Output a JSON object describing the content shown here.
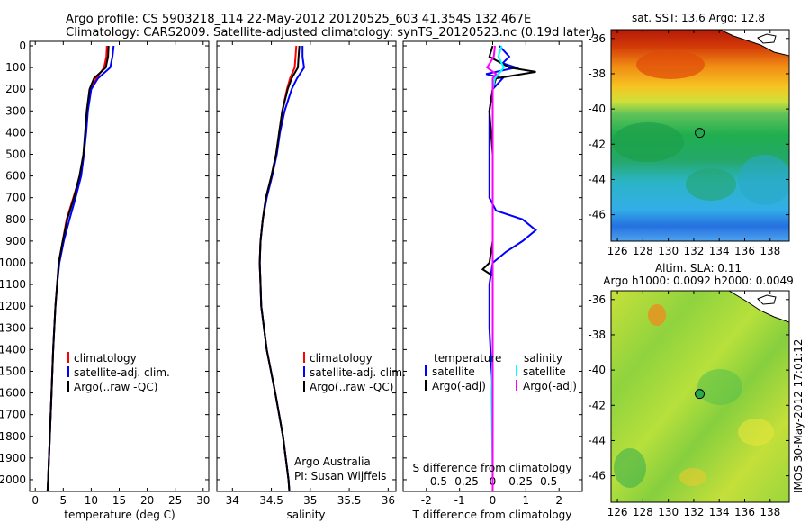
{
  "header": {
    "line1": "Argo profile: CS 5903218_114 22-May-2012 20120525_603 41.354S 132.467E",
    "line2": "Climatology: CARS2009. Satellite-adjusted climatology: synTS_20120523.nc (0.19d later)"
  },
  "colors": {
    "climatology": "#ff0000",
    "satellite": "#0000ff",
    "argo": "#000000",
    "sat_salinity": "#00ffff",
    "argo_salinity": "#ff00ff"
  },
  "depth_ticks": [
    "0",
    "100",
    "200",
    "300",
    "400",
    "500",
    "600",
    "700",
    "800",
    "900",
    "1000",
    "1100",
    "1200",
    "1300",
    "1400",
    "1500",
    "1600",
    "1700",
    "1800",
    "1900",
    "2000"
  ],
  "panels": {
    "temperature": {
      "xlabel": "temperature (deg C)",
      "xticks": [
        "0",
        "5",
        "10",
        "15",
        "20",
        "25",
        "30"
      ],
      "legend": [
        "climatology",
        "satellite-adj. clim.",
        "Argo(..raw -QC)"
      ]
    },
    "salinity": {
      "xlabel": "salinity",
      "xticks": [
        "34",
        "34.5",
        "35",
        "35.5",
        "36"
      ],
      "legend": [
        "climatology",
        "satellite-adj. clim.",
        "Argo(..raw -QC)"
      ],
      "note1": "Argo Australia",
      "note2": "PI: Susan Wijffels"
    },
    "difference": {
      "top_axis_title": "S difference from climatology",
      "s_ticks": [
        "-0.5",
        "-0.25",
        "0",
        "0.25",
        "0.5"
      ],
      "t_ticks": [
        "-2",
        "-1",
        "0",
        "1",
        "2"
      ],
      "xlabel": "T difference from climatology",
      "legend_temp_head": "temperature",
      "legend_sal_head": "salinity",
      "legend_temp": [
        "satellite",
        "Argo(-adj)"
      ],
      "legend_sal": [
        "satellite",
        "Argo(-adj)"
      ]
    },
    "map_sst": {
      "title": "sat. SST: 13.6 Argo: 12.8",
      "lat_ticks": [
        "-36",
        "-38",
        "-40",
        "-42",
        "-44",
        "-46"
      ],
      "lon_ticks": [
        "126",
        "128",
        "130",
        "132",
        "134",
        "136",
        "138"
      ]
    },
    "map_sla": {
      "title1": "Altim. SLA: 0.11",
      "title2": "Argo h1000: 0.0092 h2000: 0.0049",
      "lat_ticks": [
        "-36",
        "-38",
        "-40",
        "-42",
        "-44",
        "-46"
      ],
      "lon_ticks": [
        "126",
        "128",
        "130",
        "132",
        "134",
        "136",
        "138"
      ]
    }
  },
  "stamp": "IMOS 30-May-2012 17:01:12",
  "chart_data": [
    {
      "type": "line",
      "xlabel": "temperature (deg C)",
      "ylabel": "",
      "xlim": [
        -1,
        31
      ],
      "ylim": [
        2050,
        0
      ],
      "series": [
        {
          "name": "climatology",
          "color": "#ff0000",
          "depth": [
            0,
            50,
            100,
            150,
            200,
            300,
            400,
            500,
            600,
            700,
            800,
            900,
            1000,
            1100,
            1200,
            1400,
            1600,
            1800,
            2000,
            2050
          ],
          "values": [
            12.8,
            12.7,
            12.3,
            10.9,
            9.9,
            9.3,
            9.0,
            8.6,
            8.0,
            6.8,
            5.6,
            4.9,
            4.2,
            3.9,
            3.6,
            3.2,
            2.9,
            2.6,
            2.3,
            2.2
          ]
        },
        {
          "name": "satellite-adj. clim.",
          "color": "#0000ff",
          "depth": [
            0,
            50,
            100,
            150,
            200,
            300,
            400,
            500,
            600,
            700,
            800,
            900,
            1000,
            1100,
            1200,
            1400,
            1600,
            1800,
            2000,
            2050
          ],
          "values": [
            14.0,
            13.8,
            13.4,
            11.2,
            10.0,
            9.4,
            9.1,
            8.7,
            8.2,
            7.2,
            6.1,
            5.1,
            4.3,
            3.9,
            3.6,
            3.2,
            2.9,
            2.6,
            2.3,
            2.2
          ]
        },
        {
          "name": "Argo(..raw -QC)",
          "color": "#000000",
          "depth": [
            0,
            50,
            100,
            150,
            200,
            300,
            400,
            500,
            600,
            700,
            800,
            900,
            1000,
            1100,
            1200,
            1400,
            1600,
            1800,
            2000,
            2050
          ],
          "values": [
            13.1,
            13.0,
            12.6,
            10.5,
            9.7,
            9.2,
            8.9,
            8.6,
            7.9,
            6.9,
            5.7,
            4.9,
            4.2,
            3.9,
            3.6,
            3.2,
            2.9,
            2.6,
            2.3,
            2.2
          ]
        }
      ]
    },
    {
      "type": "line",
      "xlabel": "salinity",
      "ylabel": "",
      "xlim": [
        33.8,
        36.1
      ],
      "ylim": [
        2050,
        0
      ],
      "series": [
        {
          "name": "climatology",
          "color": "#ff0000",
          "depth": [
            0,
            50,
            100,
            150,
            200,
            300,
            400,
            500,
            600,
            700,
            800,
            900,
            1000,
            1100,
            1200,
            1400,
            1600,
            1800,
            2000,
            2050
          ],
          "values": [
            34.82,
            34.81,
            34.8,
            34.74,
            34.7,
            34.64,
            34.6,
            34.56,
            34.5,
            34.43,
            34.39,
            34.36,
            34.35,
            34.36,
            34.37,
            34.44,
            34.55,
            34.65,
            34.72,
            34.73
          ]
        },
        {
          "name": "satellite-adj. clim.",
          "color": "#0000ff",
          "depth": [
            0,
            50,
            100,
            150,
            200,
            300,
            400,
            500,
            600,
            700,
            800,
            900,
            1000,
            1100,
            1200,
            1400,
            1600,
            1800,
            2000,
            2050
          ],
          "values": [
            34.9,
            34.9,
            34.92,
            34.83,
            34.76,
            34.67,
            34.61,
            34.57,
            34.51,
            34.44,
            34.39,
            34.36,
            34.35,
            34.36,
            34.37,
            34.44,
            34.55,
            34.65,
            34.72,
            34.73
          ]
        },
        {
          "name": "Argo(..raw -QC)",
          "color": "#000000",
          "depth": [
            0,
            50,
            100,
            150,
            200,
            300,
            400,
            500,
            600,
            700,
            800,
            900,
            1000,
            1100,
            1200,
            1400,
            1600,
            1800,
            2000,
            2050
          ],
          "values": [
            34.86,
            34.85,
            34.84,
            34.76,
            34.71,
            34.64,
            34.6,
            34.56,
            34.5,
            34.43,
            34.39,
            34.36,
            34.35,
            34.36,
            34.37,
            34.44,
            34.55,
            34.65,
            34.72,
            34.73
          ]
        }
      ]
    },
    {
      "type": "line",
      "xlabel": "T difference from climatology",
      "ylabel": "",
      "xlim": [
        -2.7,
        2.7
      ],
      "ylim": [
        2050,
        0
      ],
      "series": [
        {
          "name": "temperature satellite",
          "color": "#0000ff",
          "depth": [
            0,
            50,
            80,
            100,
            130,
            150,
            200,
            300,
            500,
            700,
            760,
            800,
            850,
            900,
            950,
            1000,
            1100,
            1300,
            1600,
            2000,
            2050
          ],
          "values": [
            0.2,
            0.5,
            0.3,
            0.7,
            -0.2,
            0.3,
            0.0,
            -0.1,
            -0.1,
            -0.1,
            0.1,
            0.9,
            1.3,
            0.9,
            0.4,
            0.0,
            -0.1,
            -0.1,
            0.0,
            0.0,
            0.0
          ]
        },
        {
          "name": "temperature Argo(-adj)",
          "color": "#000000",
          "depth": [
            0,
            50,
            100,
            120,
            150,
            200,
            300,
            500,
            700,
            800,
            900,
            1000,
            1030,
            1060,
            1100,
            1300,
            1600,
            2000,
            2050
          ],
          "values": [
            0.0,
            -0.1,
            0.5,
            1.3,
            0.1,
            0.0,
            -0.1,
            0.0,
            0.0,
            0.0,
            0.0,
            -0.1,
            -0.3,
            0.0,
            0.0,
            0.0,
            0.0,
            0.0,
            0.0
          ]
        },
        {
          "name": "salinity satellite",
          "color": "#00ffff",
          "depth": [
            0,
            50,
            100,
            150,
            200,
            300,
            500,
            800,
            1100,
            1400,
            1600,
            2000,
            2050
          ],
          "values": [
            0.08,
            0.05,
            0.1,
            0.02,
            0.0,
            0.0,
            0.0,
            0.0,
            0.0,
            0.0,
            -0.01,
            0.0,
            0.0
          ]
        },
        {
          "name": "salinity Argo(-adj)",
          "color": "#ff00ff",
          "depth": [
            0,
            50,
            100,
            130,
            150,
            200,
            300,
            500,
            800,
            1100,
            1400,
            1600,
            2000,
            2050
          ],
          "values": [
            0.02,
            0.01,
            -0.05,
            0.03,
            0.0,
            0.0,
            0.0,
            0.0,
            0.0,
            0.0,
            0.0,
            0.0,
            0.0,
            0.0
          ]
        }
      ]
    },
    {
      "type": "heatmap",
      "title": "sat. SST: 13.6 Argo: 12.8",
      "xlim": [
        125.5,
        139.5
      ],
      "ylim": [
        -47.5,
        -35.5
      ],
      "argo_position": {
        "lon": 132.467,
        "lat": -41.354
      }
    },
    {
      "type": "heatmap",
      "title": "Altim. SLA: 0.11",
      "xlim": [
        125.5,
        139.5
      ],
      "ylim": [
        -47.5,
        -35.5
      ],
      "argo_position": {
        "lon": 132.467,
        "lat": -41.354
      }
    }
  ]
}
